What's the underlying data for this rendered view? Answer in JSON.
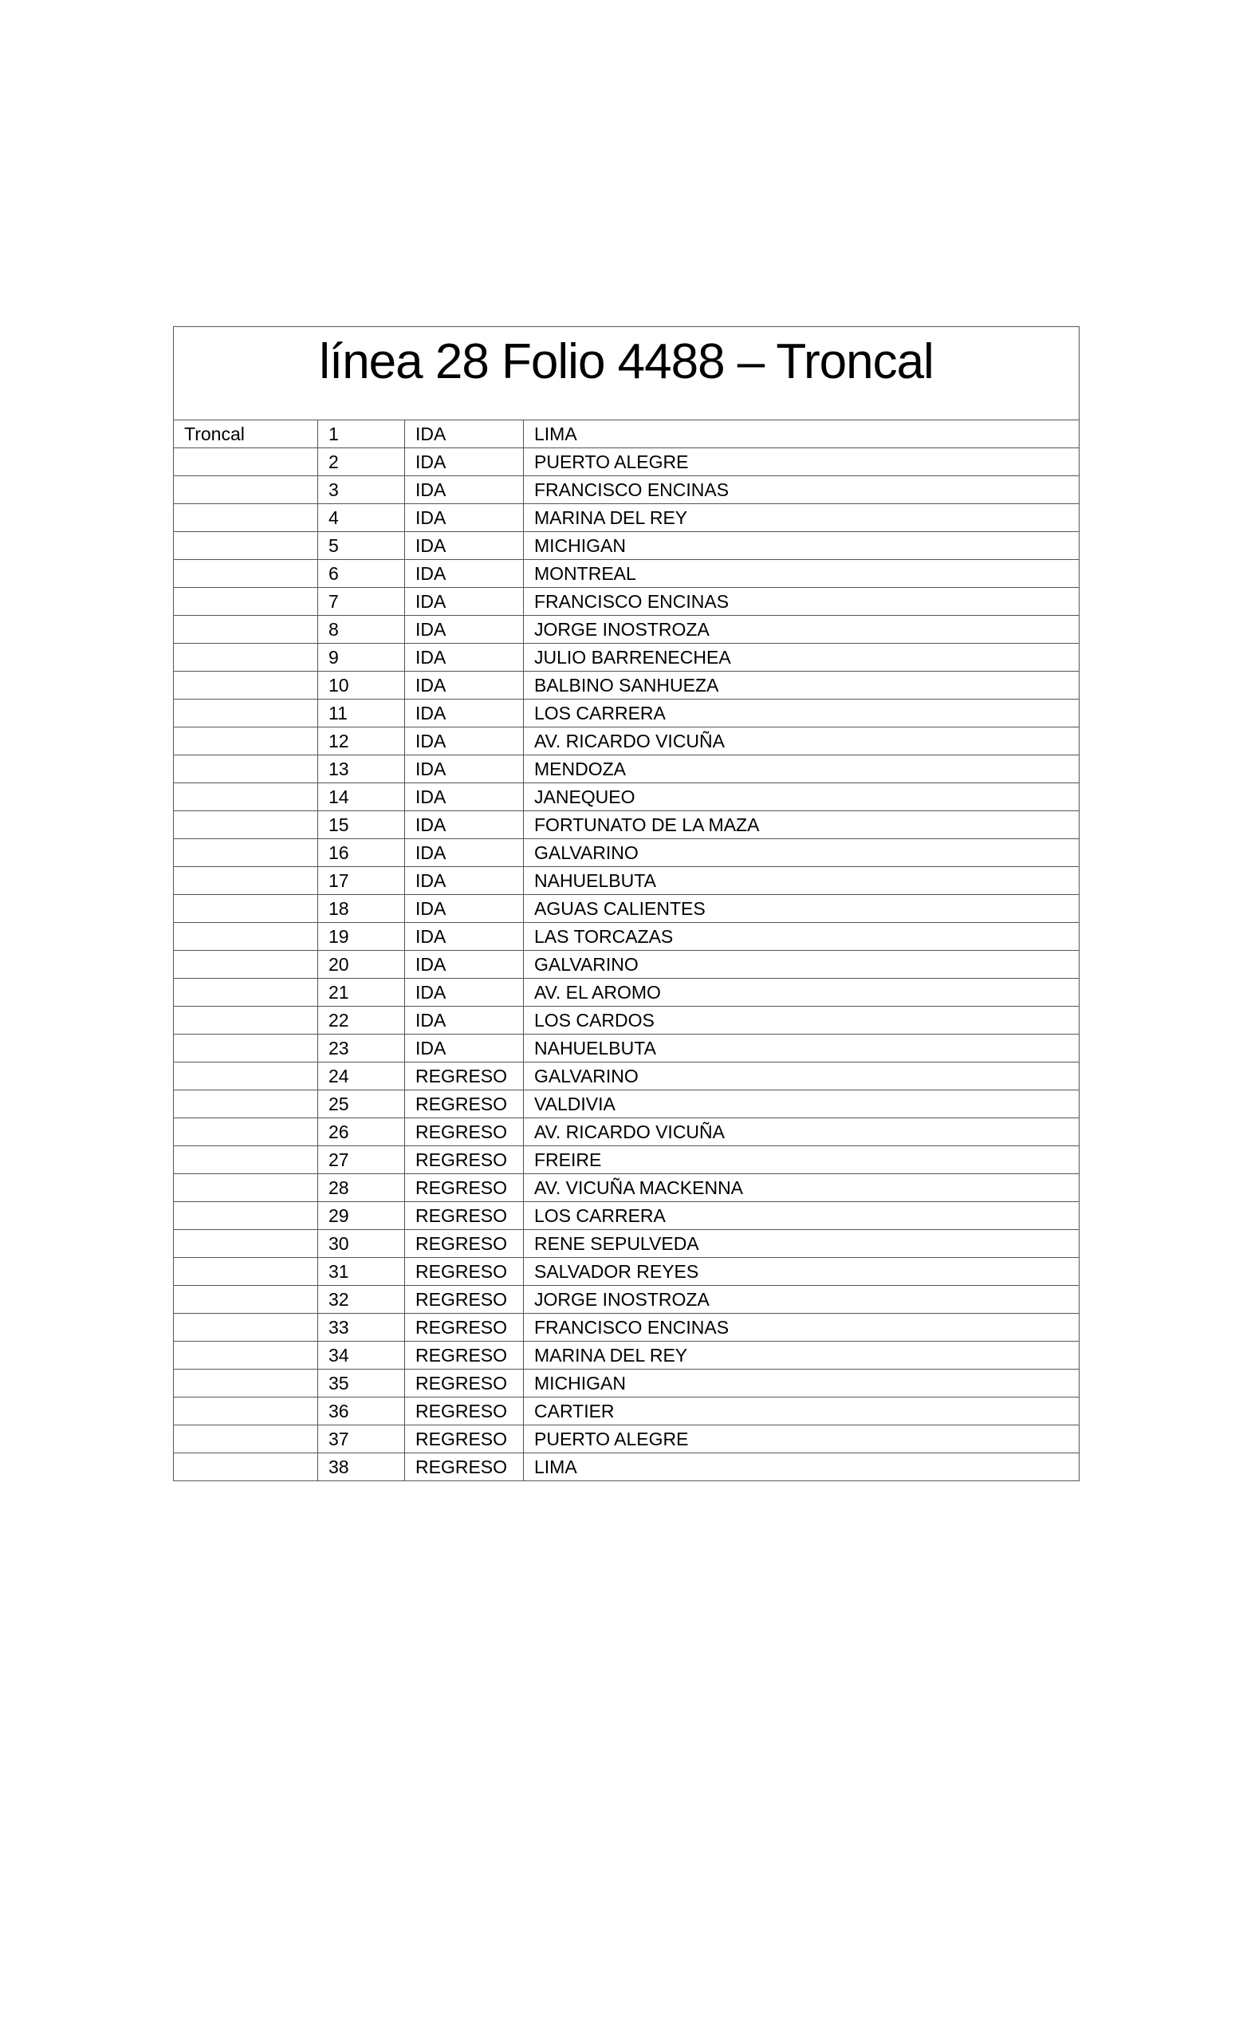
{
  "title": "línea 28 Folio 4488 – Troncal",
  "rows": [
    [
      "Troncal",
      "1",
      "IDA",
      "LIMA"
    ],
    [
      "",
      "2",
      "IDA",
      "PUERTO ALEGRE"
    ],
    [
      "",
      "3",
      "IDA",
      "FRANCISCO ENCINAS"
    ],
    [
      "",
      "4",
      "IDA",
      "MARINA DEL REY"
    ],
    [
      "",
      "5",
      "IDA",
      "MICHIGAN"
    ],
    [
      "",
      "6",
      "IDA",
      "MONTREAL"
    ],
    [
      "",
      "7",
      "IDA",
      "FRANCISCO ENCINAS"
    ],
    [
      "",
      "8",
      "IDA",
      "JORGE INOSTROZA"
    ],
    [
      "",
      "9",
      "IDA",
      "JULIO BARRENECHEA"
    ],
    [
      "",
      "10",
      "IDA",
      "BALBINO SANHUEZA"
    ],
    [
      "",
      "11",
      "IDA",
      "LOS CARRERA"
    ],
    [
      "",
      "12",
      "IDA",
      "AV. RICARDO VICUÑA"
    ],
    [
      "",
      "13",
      "IDA",
      "MENDOZA"
    ],
    [
      "",
      "14",
      "IDA",
      "JANEQUEO"
    ],
    [
      "",
      "15",
      "IDA",
      "FORTUNATO DE LA MAZA"
    ],
    [
      "",
      "16",
      "IDA",
      "GALVARINO"
    ],
    [
      "",
      "17",
      "IDA",
      "NAHUELBUTA"
    ],
    [
      "",
      "18",
      "IDA",
      "AGUAS CALIENTES"
    ],
    [
      "",
      "19",
      "IDA",
      "LAS TORCAZAS"
    ],
    [
      "",
      "20",
      "IDA",
      "GALVARINO"
    ],
    [
      "",
      "21",
      "IDA",
      "AV. EL AROMO"
    ],
    [
      "",
      "22",
      "IDA",
      "LOS CARDOS"
    ],
    [
      "",
      "23",
      "IDA",
      "NAHUELBUTA"
    ],
    [
      "",
      "24",
      "REGRESO",
      "GALVARINO"
    ],
    [
      "",
      "25",
      "REGRESO",
      "VALDIVIA"
    ],
    [
      "",
      "26",
      "REGRESO",
      "AV. RICARDO VICUÑA"
    ],
    [
      "",
      "27",
      "REGRESO",
      "FREIRE"
    ],
    [
      "",
      "28",
      "REGRESO",
      "AV. VICUÑA MACKENNA"
    ],
    [
      "",
      "29",
      "REGRESO",
      "LOS CARRERA"
    ],
    [
      "",
      "30",
      "REGRESO",
      "RENE SEPULVEDA"
    ],
    [
      "",
      "31",
      "REGRESO",
      "SALVADOR REYES"
    ],
    [
      "",
      "32",
      "REGRESO",
      "JORGE INOSTROZA"
    ],
    [
      "",
      "33",
      "REGRESO",
      "FRANCISCO ENCINAS"
    ],
    [
      "",
      "34",
      "REGRESO",
      "MARINA DEL REY"
    ],
    [
      "",
      "35",
      "REGRESO",
      "MICHIGAN"
    ],
    [
      "",
      "36",
      "REGRESO",
      "CARTIER"
    ],
    [
      "",
      "37",
      "REGRESO",
      "PUERTO ALEGRE"
    ],
    [
      "",
      "38",
      "REGRESO",
      "LIMA"
    ]
  ]
}
